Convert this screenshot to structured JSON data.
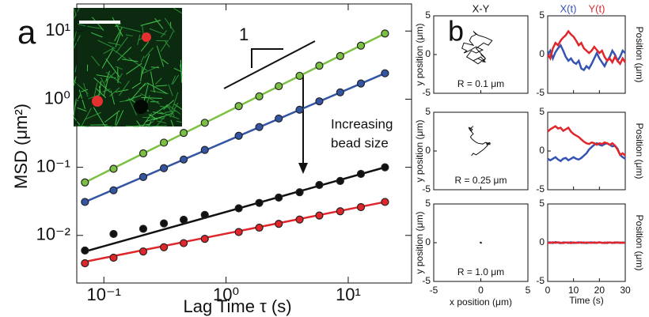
{
  "chart_data": [
    {
      "type": "scatter",
      "panel": "a",
      "ylabel": "MSD (μm²)",
      "xlabel": "Lag Time τ (s)",
      "log_x": true,
      "log_y": true,
      "xlim": [
        0.06,
        33
      ],
      "ylim": [
        0.002,
        25
      ],
      "xticks": [
        {
          "value": 0.1,
          "label": "10⁻¹"
        },
        {
          "value": 1,
          "label": "10⁰"
        },
        {
          "value": 10,
          "label": "10¹"
        }
      ],
      "yticks": [
        {
          "value": 0.01,
          "label": "10⁻²"
        },
        {
          "value": 0.1,
          "label": "10⁻¹"
        },
        {
          "value": 1,
          "label": "10⁰"
        },
        {
          "value": 10,
          "label": "10¹"
        }
      ],
      "x": [
        0.07,
        0.12,
        0.21,
        0.31,
        0.45,
        0.67,
        1.27,
        1.87,
        2.7,
        4,
        5.8,
        8.6,
        12.7,
        20
      ],
      "fit_x": [
        0.07,
        20
      ],
      "series": [
        {
          "color": "#7cc043",
          "values": [
            0.06,
            0.095,
            0.16,
            0.23,
            0.32,
            0.45,
            0.79,
            1.1,
            1.55,
            2.2,
            3.1,
            4.3,
            6.1,
            9.2
          ],
          "fit": [
            0.06,
            9.2
          ]
        },
        {
          "color": "#3454a4",
          "values": [
            0.031,
            0.046,
            0.072,
            0.097,
            0.13,
            0.18,
            0.29,
            0.39,
            0.52,
            0.7,
            0.93,
            1.26,
            1.7,
            2.4
          ],
          "fit": [
            0.031,
            2.4
          ]
        },
        {
          "color": "#111111",
          "values": [
            0.006,
            0.0105,
            0.0125,
            0.015,
            0.017,
            0.02,
            0.025,
            0.03,
            0.036,
            0.043,
            0.055,
            0.063,
            0.08,
            0.1
          ],
          "fit": [
            0.0058,
            0.1
          ]
        },
        {
          "color": "#e0262b",
          "values": [
            0.0039,
            0.0047,
            0.0058,
            0.0067,
            0.0077,
            0.0089,
            0.0112,
            0.013,
            0.0148,
            0.0171,
            0.0196,
            0.0226,
            0.026,
            0.031
          ],
          "fit": [
            0.0041,
            0.031
          ]
        }
      ],
      "slope_label": "1",
      "annotation": [
        "Increasing",
        "bead size"
      ]
    },
    {
      "type": "trajectory",
      "panel": "b",
      "title": "X-Y",
      "legend": true,
      "label": "R = 0.1 μm",
      "xy_ylabel": "y position (μm)",
      "ylabel": "Position (μm)",
      "x": [
        0,
        1,
        2,
        3,
        4,
        5,
        6,
        7,
        8,
        9,
        10,
        11,
        12,
        13,
        14,
        15,
        16,
        17,
        18,
        19,
        20,
        21,
        22,
        23,
        24,
        25,
        26,
        27,
        28,
        29,
        30
      ],
      "xlim": [
        0,
        30
      ],
      "xticks": [
        0,
        10,
        20,
        30
      ],
      "ylim": [
        -5,
        5
      ],
      "yticks": [
        -5,
        0,
        5
      ],
      "xy_lim": [
        -5,
        5
      ],
      "xy_ticks": [
        -5,
        0,
        5
      ],
      "series": [
        {
          "name": "X(t)",
          "color": "#3454b4",
          "values": [
            0,
            0.5,
            -0.5,
            0.3,
            0.8,
            1.2,
            0.5,
            -0.3,
            -0.8,
            -0.5,
            -1,
            -1.2,
            -0.8,
            -1.8,
            -2,
            -1.5,
            -1.8,
            -1.2,
            -0.5,
            0.2,
            -0.5,
            -1,
            -1.5,
            -0.8,
            -0.3,
            0.5,
            0,
            -0.8,
            -0.3,
            0.5,
            0.2
          ]
        },
        {
          "name": "Y(t)",
          "color": "#e0262b",
          "values": [
            0,
            -0.5,
            0.8,
            1.5,
            1.2,
            1.8,
            2.2,
            2.5,
            3,
            2.6,
            2.3,
            1.8,
            1.2,
            1.5,
            0.8,
            0.5,
            0.2,
            0.5,
            1,
            0.6,
            0.2,
            0.5,
            -0.3,
            -0.8,
            -0.5,
            -1,
            -0.3,
            -0.8,
            -1.2,
            -0.5,
            -1
          ]
        }
      ]
    },
    {
      "type": "trajectory",
      "label": "R = 0.25 μm",
      "xy_ylabel": "y position (μm)",
      "ylabel": "Position (μm)",
      "x": [
        0,
        1,
        2,
        3,
        4,
        5,
        6,
        7,
        8,
        9,
        10,
        11,
        12,
        13,
        14,
        15,
        16,
        17,
        18,
        19,
        20,
        21,
        22,
        23,
        24,
        25,
        26,
        27,
        28,
        29,
        30
      ],
      "xlim": [
        0,
        30
      ],
      "xticks": [
        0,
        10,
        20,
        30
      ],
      "ylim": [
        -5,
        5
      ],
      "yticks": [
        -5,
        0,
        5
      ],
      "xy_lim": [
        -5,
        5
      ],
      "xy_ticks": [
        -5,
        0,
        5
      ],
      "series": [
        {
          "color": "#3454b4",
          "values": [
            -1,
            -1.2,
            -1,
            -0.8,
            -1.1,
            -1.3,
            -1,
            -0.9,
            -1.2,
            -1,
            -0.8,
            -1,
            -1.1,
            -0.9,
            -0.6,
            -0.3,
            0.2,
            0.5,
            0.8,
            1,
            0.8,
            0.7,
            0.9,
            1,
            0.8,
            0.6,
            0.7,
            0.3,
            -0.5,
            -0.8,
            -1
          ]
        },
        {
          "color": "#e0262b",
          "values": [
            2.5,
            2.8,
            3,
            3.2,
            2.9,
            3,
            2.6,
            2.8,
            3,
            2.5,
            2.2,
            2,
            1.8,
            1.5,
            1.2,
            1,
            0.9,
            1.1,
            1,
            0.8,
            1,
            0.9,
            1.1,
            1,
            0.8,
            1,
            0.7,
            0.2,
            -0.5,
            -0.3,
            -0.6
          ]
        }
      ]
    },
    {
      "type": "trajectory",
      "label": "R = 1.0 μm",
      "xy_ylabel": "y position (μm)",
      "ylabel": "Position (μm)",
      "xy_xlabel": "x position (μm)",
      "xlabel": "Time (s)",
      "x": [
        0,
        1,
        2,
        3,
        4,
        5,
        6,
        7,
        8,
        9,
        10,
        11,
        12,
        13,
        14,
        15,
        16,
        17,
        18,
        19,
        20,
        21,
        22,
        23,
        24,
        25,
        26,
        27,
        28,
        29,
        30
      ],
      "xlim": [
        0,
        30
      ],
      "xticks": [
        0,
        10,
        20,
        30
      ],
      "ylim": [
        -5,
        5
      ],
      "yticks": [
        -5,
        0,
        5
      ],
      "xy_lim": [
        -5,
        5
      ],
      "xy_ticks": [
        -5,
        0,
        5
      ],
      "series": [
        {
          "color": "#3454b4",
          "values": [
            0,
            0.05,
            -0.05,
            0.08,
            0,
            -0.06,
            0.04,
            0.02,
            -0.03,
            0.06,
            -0.04,
            0,
            0.05,
            -0.02,
            0.03,
            -0.05,
            0.02,
            0.04,
            -0.03,
            0,
            0.06,
            -0.04,
            0.02,
            -0.05,
            0.03,
            0,
            -0.02,
            0.05,
            -0.03,
            0.02,
            0
          ]
        },
        {
          "color": "#e0262b",
          "values": [
            0,
            -0.04,
            0.06,
            -0.02,
            0.05,
            0,
            -0.05,
            0.03,
            0.02,
            -0.06,
            0.04,
            -0.02,
            0,
            0.05,
            -0.04,
            0.03,
            0,
            -0.03,
            0.05,
            -0.02,
            0.04,
            0,
            -0.05,
            0.02,
            0.03,
            -0.04,
            0.05,
            -0.01,
            0.02,
            -0.03,
            0
          ]
        }
      ]
    }
  ]
}
